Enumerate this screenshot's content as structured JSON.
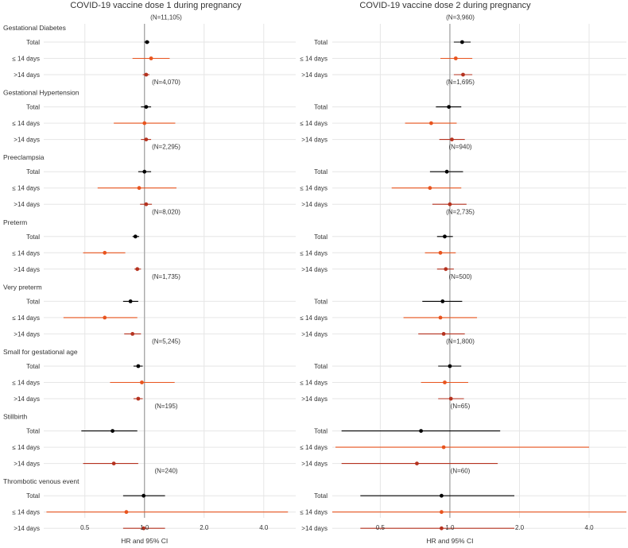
{
  "colors": {
    "total": "#000000",
    "early": "#e8541e",
    "late": "#b5321f",
    "grid": "#e6e6e6",
    "refline": "#9e9e9e",
    "text": "#333333"
  },
  "chart_data": {
    "type": "forest",
    "row_labels": [
      "Total",
      "≤ 14 days",
      ">14 days"
    ],
    "xlabel": "HR and 95% CI",
    "x_scale": "log",
    "xlim": [
      0.31,
      5.8
    ],
    "x_ticks": [
      {
        "value": 0.5,
        "label": "0.5"
      },
      {
        "value": 1.0,
        "label": "1.0"
      },
      {
        "value": 2.0,
        "label": "2.0"
      },
      {
        "value": 4.0,
        "label": "4.0"
      }
    ],
    "reference_line": 1.0,
    "panels": [
      {
        "title": "COVID-19 vaccine dose 1 during pregnancy",
        "outcomes": [
          {
            "name": "Gestational Diabetes",
            "n": "(N=11,105)",
            "rows": [
              {
                "hr": 1.03,
                "lo": 1.0,
                "hi": 1.06
              },
              {
                "hr": 1.08,
                "lo": 0.87,
                "hi": 1.34
              },
              {
                "hr": 1.02,
                "lo": 0.98,
                "hi": 1.06
              }
            ]
          },
          {
            "name": "Gestational Hypertension",
            "n": "(N=4,070)",
            "rows": [
              {
                "hr": 1.02,
                "lo": 0.96,
                "hi": 1.08
              },
              {
                "hr": 1.0,
                "lo": 0.7,
                "hi": 1.43
              },
              {
                "hr": 1.02,
                "lo": 0.96,
                "hi": 1.08
              }
            ]
          },
          {
            "name": "Preeclampsia",
            "n": "(N=2,295)",
            "rows": [
              {
                "hr": 1.0,
                "lo": 0.93,
                "hi": 1.08
              },
              {
                "hr": 0.94,
                "lo": 0.58,
                "hi": 1.45
              },
              {
                "hr": 1.02,
                "lo": 0.95,
                "hi": 1.09
              }
            ]
          },
          {
            "name": "Preterm",
            "n": "(N=8,020)",
            "rows": [
              {
                "hr": 0.9,
                "lo": 0.87,
                "hi": 0.94
              },
              {
                "hr": 0.63,
                "lo": 0.49,
                "hi": 0.8
              },
              {
                "hr": 0.92,
                "lo": 0.89,
                "hi": 0.96
              }
            ]
          },
          {
            "name": "Very preterm",
            "n": "(N=1,735)",
            "rows": [
              {
                "hr": 0.85,
                "lo": 0.78,
                "hi": 0.93
              },
              {
                "hr": 0.63,
                "lo": 0.39,
                "hi": 0.92
              },
              {
                "hr": 0.87,
                "lo": 0.79,
                "hi": 0.96
              }
            ]
          },
          {
            "name": "Small for gestational age",
            "n": "(N=5,245)",
            "rows": [
              {
                "hr": 0.93,
                "lo": 0.88,
                "hi": 0.98
              },
              {
                "hr": 0.97,
                "lo": 0.67,
                "hi": 1.42
              },
              {
                "hr": 0.93,
                "lo": 0.88,
                "hi": 0.98
              }
            ]
          },
          {
            "name": "Stillbirth",
            "n": "(N=195)",
            "rows": [
              {
                "hr": 0.69,
                "lo": 0.48,
                "hi": 0.92
              },
              {
                "hr": null,
                "lo": null,
                "hi": null
              },
              {
                "hr": 0.7,
                "lo": 0.49,
                "hi": 0.93
              }
            ]
          },
          {
            "name": "Thrombotic venous event",
            "n": "(N=240)",
            "rows": [
              {
                "hr": 0.99,
                "lo": 0.78,
                "hi": 1.27
              },
              {
                "hr": 0.81,
                "lo": 0.32,
                "hi": 5.3
              },
              {
                "hr": 0.99,
                "lo": 0.78,
                "hi": 1.27
              }
            ]
          }
        ]
      },
      {
        "title": "COVID-19 vaccine dose 2 during pregnancy",
        "outcomes": [
          {
            "name": "Gestational Diabetes",
            "n": "(N=3,960)",
            "rows": [
              {
                "hr": 1.13,
                "lo": 1.04,
                "hi": 1.23
              },
              {
                "hr": 1.06,
                "lo": 0.91,
                "hi": 1.25
              },
              {
                "hr": 1.14,
                "lo": 1.04,
                "hi": 1.25
              }
            ]
          },
          {
            "name": "Gestational Hypertension",
            "n": "(N=1,695)",
            "rows": [
              {
                "hr": 0.99,
                "lo": 0.87,
                "hi": 1.12
              },
              {
                "hr": 0.83,
                "lo": 0.64,
                "hi": 1.07
              },
              {
                "hr": 1.02,
                "lo": 0.9,
                "hi": 1.16
              }
            ]
          },
          {
            "name": "Preeclampsia",
            "n": "(N=940)",
            "rows": [
              {
                "hr": 0.97,
                "lo": 0.82,
                "hi": 1.14
              },
              {
                "hr": 0.82,
                "lo": 0.56,
                "hi": 1.12
              },
              {
                "hr": 1.0,
                "lo": 0.84,
                "hi": 1.18
              }
            ]
          },
          {
            "name": "Preterm",
            "n": "(N=2,735)",
            "rows": [
              {
                "hr": 0.95,
                "lo": 0.88,
                "hi": 1.03
              },
              {
                "hr": 0.91,
                "lo": 0.78,
                "hi": 1.06
              },
              {
                "hr": 0.96,
                "lo": 0.88,
                "hi": 1.04
              }
            ]
          },
          {
            "name": "Very preterm",
            "n": "(N=500)",
            "rows": [
              {
                "hr": 0.93,
                "lo": 0.76,
                "hi": 1.13
              },
              {
                "hr": 0.91,
                "lo": 0.63,
                "hi": 1.31
              },
              {
                "hr": 0.94,
                "lo": 0.73,
                "hi": 1.16
              }
            ]
          },
          {
            "name": "Small for gestational age",
            "n": "(N=1,800)",
            "rows": [
              {
                "hr": 1.0,
                "lo": 0.89,
                "hi": 1.12
              },
              {
                "hr": 0.95,
                "lo": 0.75,
                "hi": 1.2
              },
              {
                "hr": 1.01,
                "lo": 0.89,
                "hi": 1.15
              }
            ]
          },
          {
            "name": "Stillbirth",
            "n": "(N=65)",
            "rows": [
              {
                "hr": 0.75,
                "lo": 0.34,
                "hi": 1.65
              },
              {
                "hr": 0.94,
                "lo": 0.32,
                "hi": 4.0
              },
              {
                "hr": 0.72,
                "lo": 0.34,
                "hi": 1.61
              }
            ]
          },
          {
            "name": "Thrombotic venous event",
            "n": "(N=60)",
            "rows": [
              {
                "hr": 0.92,
                "lo": 0.41,
                "hi": 1.9
              },
              {
                "hr": 0.92,
                "lo": 0.31,
                "hi": 5.8
              },
              {
                "hr": 0.92,
                "lo": 0.41,
                "hi": 1.9
              }
            ]
          }
        ]
      }
    ]
  }
}
